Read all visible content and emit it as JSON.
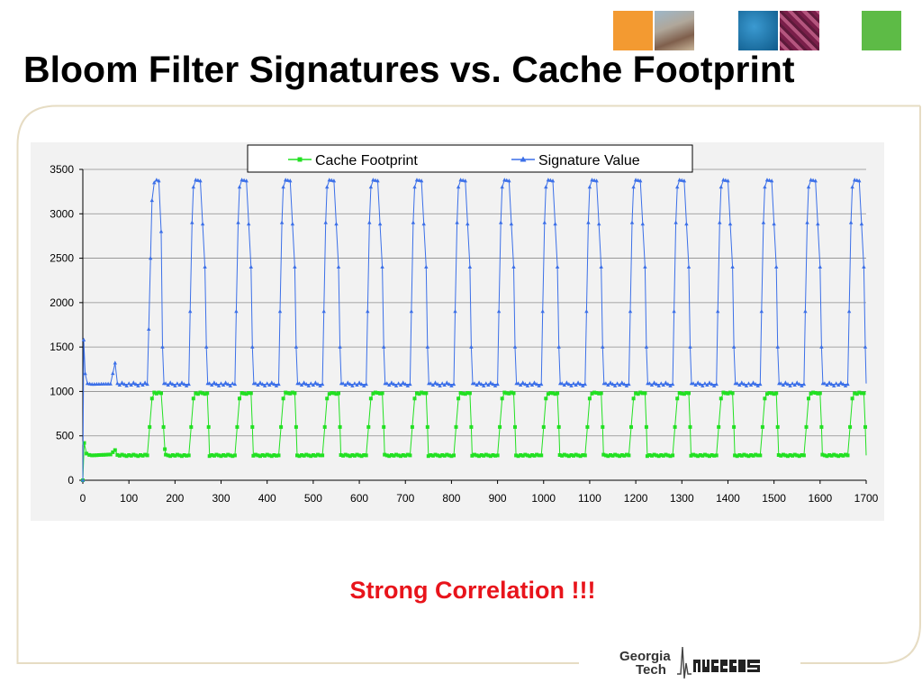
{
  "slide": {
    "title": "Bloom Filter Signatures vs. Cache Footprint",
    "subtitle": "Strong Correlation !!!",
    "logo": {
      "line1": "Georgia",
      "line2": "Tech",
      "mark": "MARS"
    },
    "header_squares": [
      "orange-square",
      "campus-photo",
      "blue-square",
      "circuit-photo",
      "green-square"
    ]
  },
  "colors": {
    "cache": "#22e022",
    "signature": "#3b6fe8",
    "subtitle": "#e8141b",
    "frame": "#e6dcc3"
  },
  "chart_data": {
    "type": "line",
    "title": "",
    "xlabel": "",
    "ylabel": "",
    "xlim": [
      0,
      1700
    ],
    "ylim": [
      0,
      3500
    ],
    "xticks": [
      0,
      100,
      200,
      300,
      400,
      500,
      600,
      700,
      800,
      900,
      1000,
      1100,
      1200,
      1300,
      1400,
      1500,
      1600,
      1700
    ],
    "yticks": [
      0,
      500,
      1000,
      1500,
      2000,
      2500,
      3000,
      3500
    ],
    "grid": "horizontal",
    "legend_position": "top",
    "pulse_count": 17,
    "series": [
      {
        "name": "Cache Footprint",
        "marker": "square",
        "low": 280,
        "high": 980,
        "x": [
          0,
          3,
          8,
          14,
          20,
          60,
          70,
          75,
          80,
          140,
          145,
          150,
          155,
          160,
          170,
          175,
          178,
          180,
          230,
          235,
          240,
          245,
          255,
          270,
          273,
          275,
          330,
          335,
          340,
          345,
          355,
          365,
          368,
          370,
          425,
          430,
          435,
          440,
          450,
          460,
          463,
          465,
          520,
          525,
          530,
          535,
          545,
          555,
          558,
          560,
          615,
          620,
          625,
          630,
          640,
          650,
          653,
          655,
          710,
          715,
          720,
          725,
          735,
          745,
          748,
          750,
          805,
          810,
          815,
          820,
          830,
          840,
          843,
          845,
          900,
          905,
          910,
          915,
          925,
          935,
          938,
          940,
          995,
          1000,
          1005,
          1010,
          1020,
          1030,
          1033,
          1035,
          1090,
          1095,
          1100,
          1105,
          1115,
          1125,
          1128,
          1130,
          1185,
          1190,
          1195,
          1200,
          1210,
          1220,
          1223,
          1225,
          1280,
          1285,
          1290,
          1295,
          1305,
          1315,
          1318,
          1320,
          1375,
          1380,
          1385,
          1390,
          1400,
          1410,
          1413,
          1415,
          1470,
          1475,
          1480,
          1485,
          1495,
          1505,
          1508,
          1510,
          1565,
          1570,
          1575,
          1580,
          1590,
          1600,
          1603,
          1605,
          1660,
          1665,
          1670,
          1675,
          1685,
          1695,
          1698,
          1700
        ],
        "y": [
          0,
          420,
          300,
          285,
          280,
          290,
          340,
          285,
          280,
          280,
          600,
          920,
          980,
          980,
          980,
          600,
          350,
          280,
          280,
          600,
          920,
          980,
          980,
          980,
          600,
          280,
          280,
          600,
          920,
          980,
          980,
          980,
          600,
          280,
          280,
          600,
          920,
          980,
          980,
          980,
          600,
          280,
          280,
          600,
          920,
          980,
          980,
          980,
          600,
          280,
          280,
          600,
          920,
          980,
          980,
          980,
          600,
          280,
          280,
          600,
          920,
          980,
          980,
          980,
          600,
          280,
          280,
          600,
          920,
          980,
          980,
          980,
          600,
          280,
          280,
          600,
          920,
          980,
          980,
          980,
          600,
          280,
          280,
          600,
          920,
          980,
          980,
          980,
          600,
          280,
          280,
          600,
          920,
          980,
          980,
          980,
          600,
          280,
          280,
          600,
          920,
          980,
          980,
          980,
          600,
          280,
          280,
          600,
          920,
          980,
          980,
          980,
          600,
          280,
          280,
          600,
          920,
          980,
          980,
          980,
          600,
          280,
          280,
          600,
          920,
          980,
          980,
          980,
          600,
          280,
          280,
          600,
          920,
          980,
          980,
          980,
          600,
          280,
          280,
          600,
          920,
          980,
          980,
          980,
          600,
          280
        ]
      },
      {
        "name": "Signature Value",
        "marker": "triangle",
        "low": 1080,
        "high": 3370,
        "x": [
          0,
          2,
          5,
          10,
          20,
          60,
          70,
          75,
          80,
          140,
          143,
          147,
          150,
          155,
          160,
          165,
          170,
          173,
          176,
          180,
          230,
          233,
          237,
          240,
          245,
          255,
          265,
          268,
          271,
          275,
          330,
          333,
          337,
          340,
          345,
          355,
          365,
          368,
          371,
          375,
          425,
          428,
          432,
          435,
          440,
          450,
          460,
          463,
          466,
          470,
          520,
          523,
          527,
          530,
          535,
          545,
          555,
          558,
          561,
          565,
          615,
          618,
          622,
          625,
          630,
          640,
          650,
          653,
          656,
          660,
          710,
          713,
          717,
          720,
          725,
          735,
          745,
          748,
          751,
          755,
          805,
          808,
          812,
          815,
          820,
          830,
          840,
          843,
          846,
          850,
          900,
          903,
          907,
          910,
          915,
          925,
          935,
          938,
          941,
          945,
          995,
          998,
          1002,
          1005,
          1010,
          1020,
          1030,
          1033,
          1036,
          1040,
          1090,
          1093,
          1097,
          1100,
          1105,
          1115,
          1125,
          1128,
          1131,
          1135,
          1185,
          1188,
          1192,
          1195,
          1200,
          1210,
          1220,
          1223,
          1226,
          1230,
          1280,
          1283,
          1287,
          1290,
          1295,
          1305,
          1315,
          1318,
          1321,
          1325,
          1375,
          1378,
          1382,
          1385,
          1390,
          1400,
          1410,
          1413,
          1416,
          1420,
          1470,
          1473,
          1477,
          1480,
          1485,
          1495,
          1505,
          1508,
          1511,
          1515,
          1565,
          1568,
          1572,
          1575,
          1580,
          1590,
          1600,
          1603,
          1606,
          1610,
          1660,
          1663,
          1667,
          1670,
          1675,
          1685,
          1695,
          1698,
          1700
        ],
        "y": [
          0,
          1580,
          1200,
          1090,
          1080,
          1085,
          1320,
          1090,
          1080,
          1080,
          1700,
          2500,
          3150,
          3350,
          3380,
          3370,
          2800,
          1500,
          1090,
          1080,
          1080,
          1900,
          2900,
          3300,
          3380,
          3370,
          2400,
          1500,
          1090,
          1080,
          1080,
          1900,
          2900,
          3300,
          3380,
          3370,
          2400,
          1500,
          1090,
          1080,
          1080,
          1900,
          2900,
          3300,
          3380,
          3370,
          2400,
          1500,
          1090,
          1080,
          1080,
          1900,
          2900,
          3300,
          3380,
          3370,
          2400,
          1500,
          1090,
          1080,
          1080,
          1900,
          2900,
          3300,
          3380,
          3370,
          2400,
          1500,
          1090,
          1080,
          1080,
          1900,
          2900,
          3300,
          3380,
          3370,
          2400,
          1500,
          1090,
          1080,
          1080,
          1900,
          2900,
          3300,
          3380,
          3370,
          2400,
          1500,
          1090,
          1080,
          1080,
          1900,
          2900,
          3300,
          3380,
          3370,
          2400,
          1500,
          1090,
          1080,
          1080,
          1900,
          2900,
          3300,
          3380,
          3370,
          2400,
          1500,
          1090,
          1080,
          1080,
          1900,
          2900,
          3300,
          3380,
          3370,
          2400,
          1500,
          1090,
          1080,
          1080,
          1900,
          2900,
          3300,
          3380,
          3370,
          2400,
          1500,
          1090,
          1080,
          1080,
          1900,
          2900,
          3300,
          3380,
          3370,
          2400,
          1500,
          1090,
          1080,
          1080,
          1900,
          2900,
          3300,
          3380,
          3370,
          2400,
          1500,
          1090,
          1080,
          1080,
          1900,
          2900,
          3300,
          3380,
          3370,
          2400,
          1500,
          1090,
          1080,
          1080,
          1900,
          2900,
          3300,
          3380,
          3370,
          2400,
          1500,
          1090,
          1080,
          1080,
          1900,
          2900,
          3300,
          3380,
          3370,
          2400,
          1500,
          1090
        ]
      }
    ]
  }
}
